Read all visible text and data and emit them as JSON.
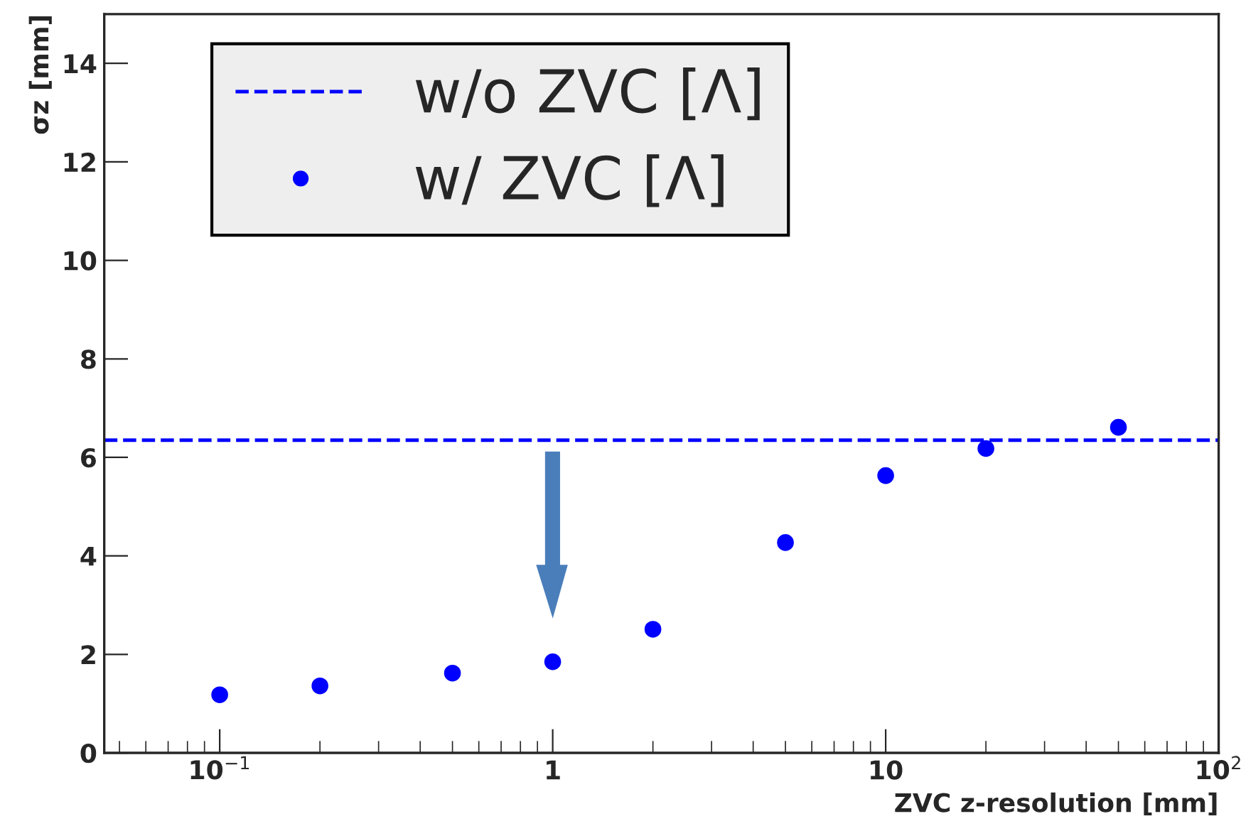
{
  "chart_data": {
    "type": "scatter",
    "xlabel": "ZVC z-resolution [mm]",
    "ylabel": "σz [mm]",
    "log": "x",
    "xlim": [
      0.045,
      100
    ],
    "ylim": [
      0,
      15
    ],
    "xticks": [
      {
        "value": 0.1,
        "label": "10$^{−1}$"
      },
      {
        "value": 1,
        "label": "1"
      },
      {
        "value": 10,
        "label": "10"
      },
      {
        "value": 100,
        "label": "10$^{2}$"
      }
    ],
    "yticks": [
      0,
      2,
      4,
      6,
      8,
      10,
      12,
      14
    ],
    "series": [
      {
        "name": "w/ ZVC [Λ]",
        "color": "#0000ff",
        "x": [
          0.1,
          0.2,
          0.5,
          1,
          2,
          5,
          10,
          20,
          50
        ],
        "values": [
          1.18,
          1.36,
          1.62,
          1.85,
          2.51,
          4.27,
          5.63,
          6.18,
          6.61
        ]
      }
    ],
    "ref_lines": [
      {
        "axis": "y",
        "value": 6.35,
        "label": "w/o ZVC [Λ]",
        "color": "#0000ff",
        "line_style": "dashed"
      }
    ],
    "marker": "circle",
    "grid": false,
    "legend": "top left"
  }
}
